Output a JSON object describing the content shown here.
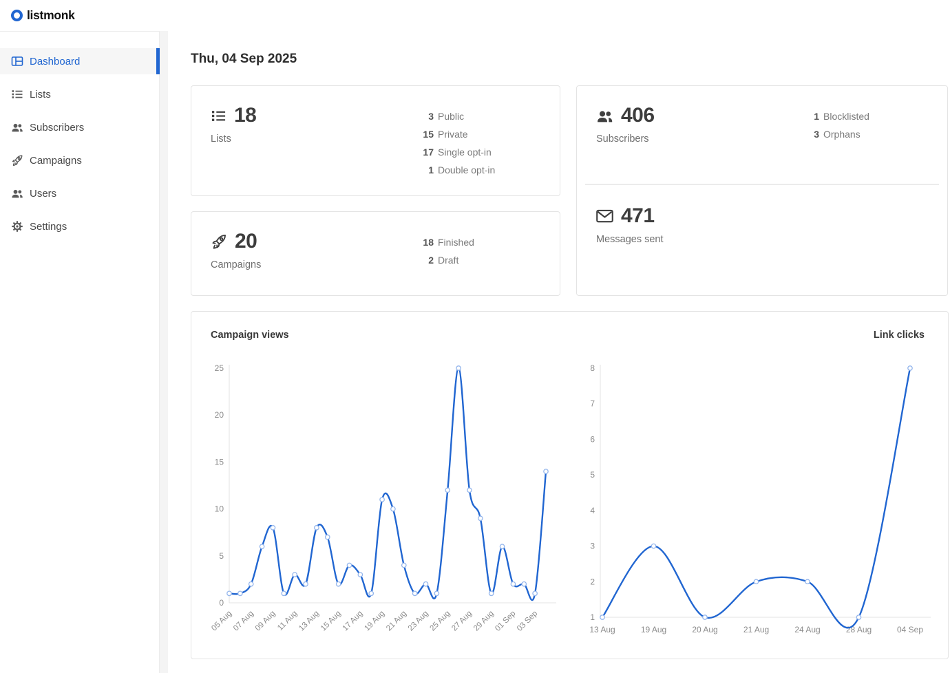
{
  "colors": {
    "accent": "#2166d1",
    "chart_line": "#2166d1",
    "chart_marker_stroke": "#93b5ec",
    "axis_line": "#e3e3e3"
  },
  "brand": {
    "name": "listmonk",
    "logo_icon": "listmonk-ring-icon"
  },
  "sidebar": {
    "items": [
      {
        "label": "Dashboard",
        "icon": "dashboard-icon",
        "active": true
      },
      {
        "label": "Lists",
        "icon": "list-icon",
        "active": false
      },
      {
        "label": "Subscribers",
        "icon": "users-icon",
        "active": false
      },
      {
        "label": "Campaigns",
        "icon": "rocket-icon",
        "active": false
      },
      {
        "label": "Users",
        "icon": "users-icon",
        "active": false
      },
      {
        "label": "Settings",
        "icon": "gear-icon",
        "active": false
      }
    ]
  },
  "header": {
    "date": "Thu, 04 Sep 2025"
  },
  "cards": {
    "lists": {
      "icon": "list-icon",
      "value": "18",
      "label": "Lists",
      "stats": [
        {
          "n": "3",
          "label": "Public"
        },
        {
          "n": "15",
          "label": "Private"
        },
        {
          "n": "17",
          "label": "Single opt-in"
        },
        {
          "n": "1",
          "label": "Double opt-in"
        }
      ]
    },
    "campaigns": {
      "icon": "rocket-icon",
      "value": "20",
      "label": "Campaigns",
      "stats": [
        {
          "n": "18",
          "label": "Finished"
        },
        {
          "n": "2",
          "label": "Draft"
        }
      ]
    },
    "subscribers": {
      "icon": "users-icon",
      "value": "406",
      "label": "Subscribers",
      "stats": [
        {
          "n": "1",
          "label": "Blocklisted"
        },
        {
          "n": "3",
          "label": "Orphans"
        }
      ]
    },
    "messages": {
      "icon": "mail-icon",
      "value": "471",
      "label": "Messages sent"
    }
  },
  "chart_data": [
    {
      "type": "line",
      "title": "Campaign views",
      "x_tick_every": 2,
      "x_tick_labels": [
        "05 Aug",
        "07 Aug",
        "09 Aug",
        "11 Aug",
        "13 Aug",
        "15 Aug",
        "17 Aug",
        "19 Aug",
        "21 Aug",
        "23 Aug",
        "25 Aug",
        "27 Aug",
        "29 Aug",
        "01 Sep",
        "03 Sep"
      ],
      "values": [
        1,
        1,
        2,
        6,
        8,
        1,
        3,
        2,
        8,
        7,
        2,
        4,
        3,
        1,
        11,
        10,
        4,
        1,
        2,
        1,
        12,
        25,
        12,
        9,
        1,
        6,
        2,
        2,
        1,
        14
      ],
      "y_ticks": [
        0,
        5,
        10,
        15,
        20,
        25
      ],
      "ylim": [
        0,
        25
      ],
      "xlabel": "",
      "ylabel": "",
      "grid": false,
      "legend": "none",
      "smooth": true
    },
    {
      "type": "line",
      "title": "Link clicks",
      "categories": [
        "13 Aug",
        "19 Aug",
        "20 Aug",
        "21 Aug",
        "24 Aug",
        "28 Aug",
        "04 Sep"
      ],
      "values": [
        1,
        3,
        1,
        2,
        2,
        1,
        8
      ],
      "y_ticks": [
        1,
        2,
        3,
        4,
        5,
        6,
        7,
        8
      ],
      "ylim": [
        1,
        8
      ],
      "xlabel": "",
      "ylabel": "",
      "grid": false,
      "legend": "none",
      "smooth": true
    }
  ]
}
